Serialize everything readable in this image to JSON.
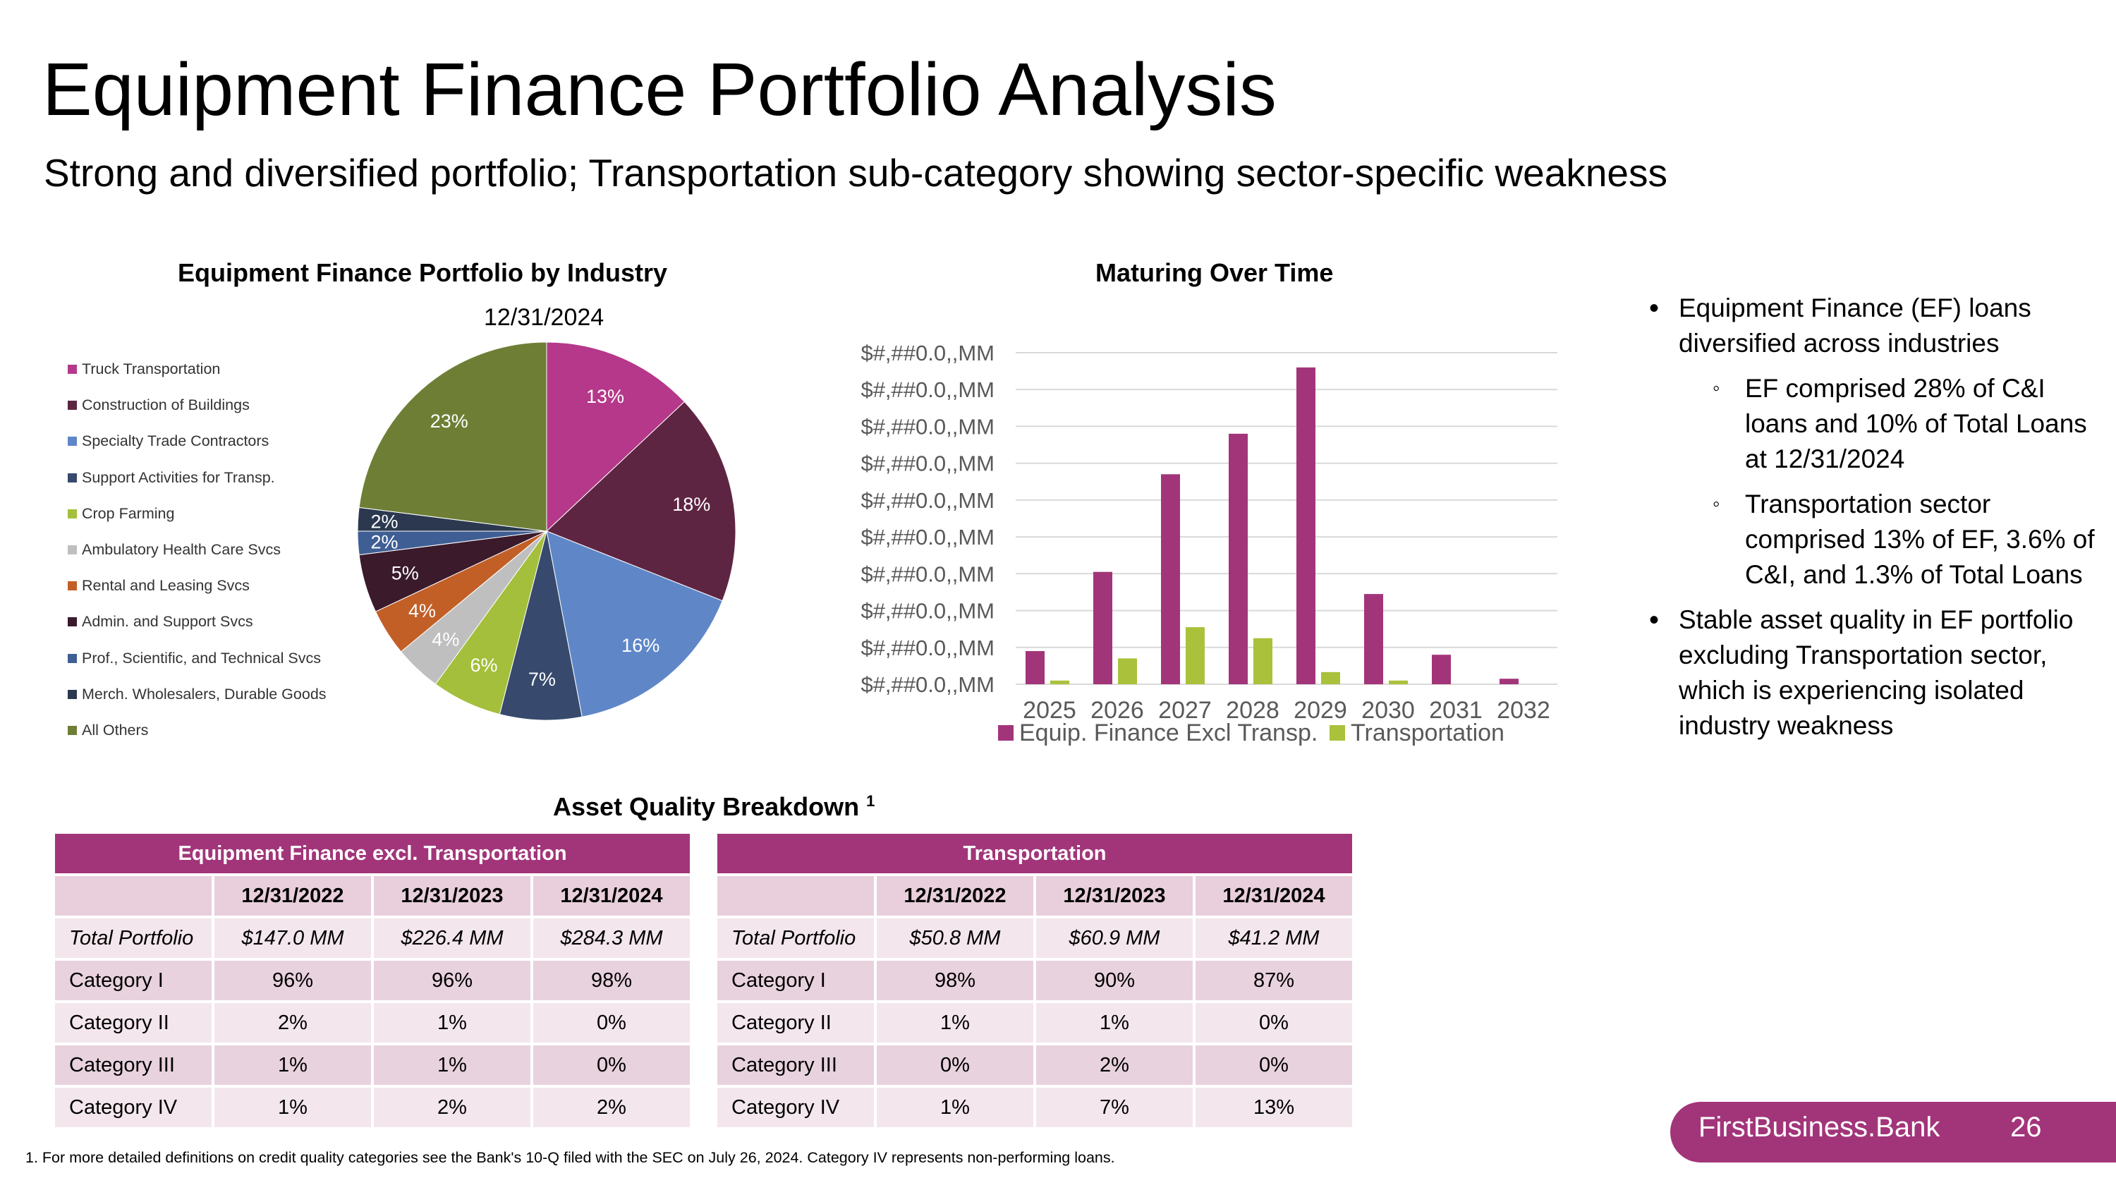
{
  "title": "Equipment Finance Portfolio Analysis",
  "subtitle": "Strong and diversified portfolio; Transportation sub-category showing sector-specific weakness",
  "chart_data": [
    {
      "type": "pie",
      "title": "Equipment Finance Portfolio by Industry",
      "subtitle": "12/31/2024",
      "legend_position": "left",
      "slices": [
        {
          "name": "Truck Transportation",
          "value": 13,
          "label": "13%",
          "color": "#b5388a"
        },
        {
          "name": "Construction of Buildings",
          "value": 18,
          "label": "18%",
          "color": "#5e2542"
        },
        {
          "name": "Specialty Trade Contractors",
          "value": 16,
          "label": "16%",
          "color": "#5f87c8"
        },
        {
          "name": "Support Activities for Transp.",
          "value": 7,
          "label": "7%",
          "color": "#374a6e"
        },
        {
          "name": "Crop Farming",
          "value": 6,
          "label": "6%",
          "color": "#a4bf3b"
        },
        {
          "name": "Ambulatory Health Care Svcs",
          "value": 4,
          "label": "4%",
          "color": "#bfbfbf"
        },
        {
          "name": "Rental and Leasing Svcs",
          "value": 4,
          "label": "4%",
          "color": "#c25f27"
        },
        {
          "name": "Admin. and Support Svcs",
          "value": 5,
          "label": "5%",
          "color": "#3b1a2c"
        },
        {
          "name": "Prof., Scientific, and Technical Svcs",
          "value": 2,
          "label": "2%",
          "color": "#3f5f94"
        },
        {
          "name": "Merch. Wholesalers, Durable Goods",
          "value": 2,
          "label": "2%",
          "color": "#2b3850"
        },
        {
          "name": "All Others",
          "value": 23,
          "label": "23%",
          "color": "#6e7f35"
        }
      ]
    },
    {
      "type": "bar",
      "title": "Maturing Over Time",
      "categories": [
        "2025",
        "2026",
        "2027",
        "2028",
        "2029",
        "2030",
        "2031",
        "2032"
      ],
      "y_tick_labels": [
        "$#,##0.0,,MM",
        "$#,##0.0,,MM",
        "$#,##0.0,,MM",
        "$#,##0.0,,MM",
        "$#,##0.0,,MM",
        "$#,##0.0,,MM",
        "$#,##0.0,,MM",
        "$#,##0.0,,MM",
        "$#,##0.0,,MM",
        "$#,##0.0,,MM"
      ],
      "ylim": [
        0,
        90
      ],
      "grid": true,
      "legend_position": "bottom",
      "series": [
        {
          "name": "Equip. Finance Excl Transp.",
          "color": "#a2357a",
          "values": [
            9,
            30.5,
            57,
            68,
            86,
            24.5,
            8,
            1.5
          ]
        },
        {
          "name": "Transportation",
          "color": "#a9c13b",
          "values": [
            1,
            7,
            15.5,
            12.5,
            3.3,
            1,
            0,
            0
          ]
        }
      ]
    }
  ],
  "bullets": [
    {
      "level": 1,
      "text": "Equipment Finance (EF) loans diversified across industries"
    },
    {
      "level": 2,
      "text": "EF comprised 28% of C&I loans and 10% of Total Loans at 12/31/2024"
    },
    {
      "level": 2,
      "text": "Transportation sector comprised 13% of EF, 3.6% of C&I, and 1.3% of Total Loans"
    },
    {
      "level": 1,
      "text": "Stable asset quality in EF portfolio excluding Transportation sector, which is experiencing isolated industry weakness"
    }
  ],
  "asset_quality": {
    "title": "Asset Quality Breakdown",
    "footnote_mark": "1",
    "columns": [
      "12/31/2022",
      "12/31/2023",
      "12/31/2024"
    ],
    "tables": [
      {
        "header": "Equipment Finance excl. Transportation",
        "rows": [
          {
            "label": "Total Portfolio",
            "values": [
              "$147.0 MM",
              "$226.4 MM",
              "$284.3 MM"
            ]
          },
          {
            "label": "Category I",
            "values": [
              "96%",
              "96%",
              "98%"
            ]
          },
          {
            "label": "Category II",
            "values": [
              "2%",
              "1%",
              "0%"
            ]
          },
          {
            "label": "Category III",
            "values": [
              "1%",
              "1%",
              "0%"
            ]
          },
          {
            "label": "Category IV",
            "values": [
              "1%",
              "2%",
              "2%"
            ]
          }
        ]
      },
      {
        "header": "Transportation",
        "rows": [
          {
            "label": "Total Portfolio",
            "values": [
              "$50.8 MM",
              "$60.9 MM",
              "$41.2 MM"
            ]
          },
          {
            "label": "Category I",
            "values": [
              "98%",
              "90%",
              "87%"
            ]
          },
          {
            "label": "Category II",
            "values": [
              "1%",
              "1%",
              "0%"
            ]
          },
          {
            "label": "Category III",
            "values": [
              "0%",
              "2%",
              "0%"
            ]
          },
          {
            "label": "Category IV",
            "values": [
              "1%",
              "7%",
              "13%"
            ]
          }
        ]
      }
    ]
  },
  "footnote": "1.   For more detailed definitions on credit quality categories see the Bank's 10-Q filed with the SEC on July 26, 2024. Category IV represents non-performing loans.",
  "brand": {
    "name": "FirstBusiness.Bank",
    "page": "26",
    "color": "#a2357a"
  }
}
